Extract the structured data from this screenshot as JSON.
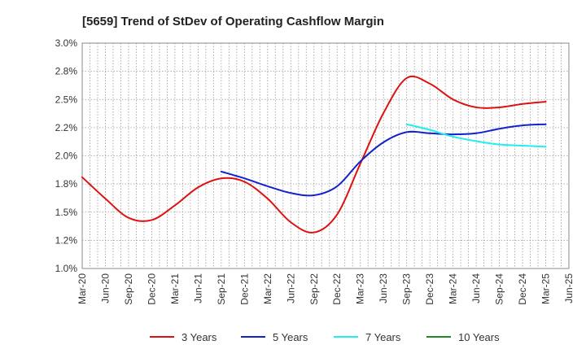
{
  "chart_data": {
    "type": "line",
    "title": "[5659]  Trend of StDev of Operating Cashflow Margin",
    "xlabel": "",
    "ylabel": "",
    "ylim": [
      1.0,
      3.0
    ],
    "y_ticks": [
      "3.0%",
      "2.8%",
      "2.5%",
      "2.2%",
      "2.0%",
      "1.8%",
      "1.5%",
      "1.2%",
      "1.0%"
    ],
    "x_ticks": [
      "Mar-20",
      "Jun-20",
      "Sep-20",
      "Dec-20",
      "Mar-21",
      "Jun-21",
      "Sep-21",
      "Dec-21",
      "Mar-22",
      "Jun-22",
      "Sep-22",
      "Dec-22",
      "Mar-23",
      "Jun-23",
      "Sep-23",
      "Dec-23",
      "Mar-24",
      "Jun-24",
      "Sep-24",
      "Dec-24",
      "Mar-25",
      "Jun-25"
    ],
    "grid": true,
    "legend_position": "bottom",
    "series": [
      {
        "name": "3 Years",
        "color": "#dd1111",
        "x": [
          "Mar-20",
          "Jun-20",
          "Sep-20",
          "Dec-20",
          "Mar-21",
          "Jun-21",
          "Sep-21",
          "Dec-21",
          "Mar-22",
          "Jun-22",
          "Sep-22",
          "Dec-22",
          "Mar-23",
          "Jun-23",
          "Sep-23",
          "Dec-23",
          "Mar-24",
          "Jun-24",
          "Sep-24",
          "Dec-24",
          "Mar-25"
        ],
        "values": [
          1.81,
          1.62,
          1.45,
          1.43,
          1.56,
          1.72,
          1.8,
          1.77,
          1.62,
          1.41,
          1.32,
          1.48,
          1.93,
          2.38,
          2.69,
          2.64,
          2.5,
          2.43,
          2.43,
          2.46,
          2.48
        ]
      },
      {
        "name": "5 Years",
        "color": "#1122cc",
        "x": [
          "Sep-21",
          "Dec-21",
          "Mar-22",
          "Jun-22",
          "Sep-22",
          "Dec-22",
          "Mar-23",
          "Jun-23",
          "Sep-23",
          "Dec-23",
          "Mar-24",
          "Jun-24",
          "Sep-24",
          "Dec-24",
          "Mar-25"
        ],
        "values": [
          1.86,
          1.8,
          1.73,
          1.67,
          1.65,
          1.73,
          1.95,
          2.12,
          2.21,
          2.2,
          2.19,
          2.2,
          2.24,
          2.27,
          2.28
        ]
      },
      {
        "name": "7 Years",
        "color": "#22eeee",
        "x": [
          "Sep-23",
          "Dec-23",
          "Mar-24",
          "Jun-24",
          "Sep-24",
          "Dec-24",
          "Mar-25"
        ],
        "values": [
          2.28,
          2.23,
          2.17,
          2.13,
          2.1,
          2.09,
          2.08
        ]
      },
      {
        "name": "10 Years",
        "color": "#228822",
        "x": [],
        "values": []
      }
    ]
  }
}
